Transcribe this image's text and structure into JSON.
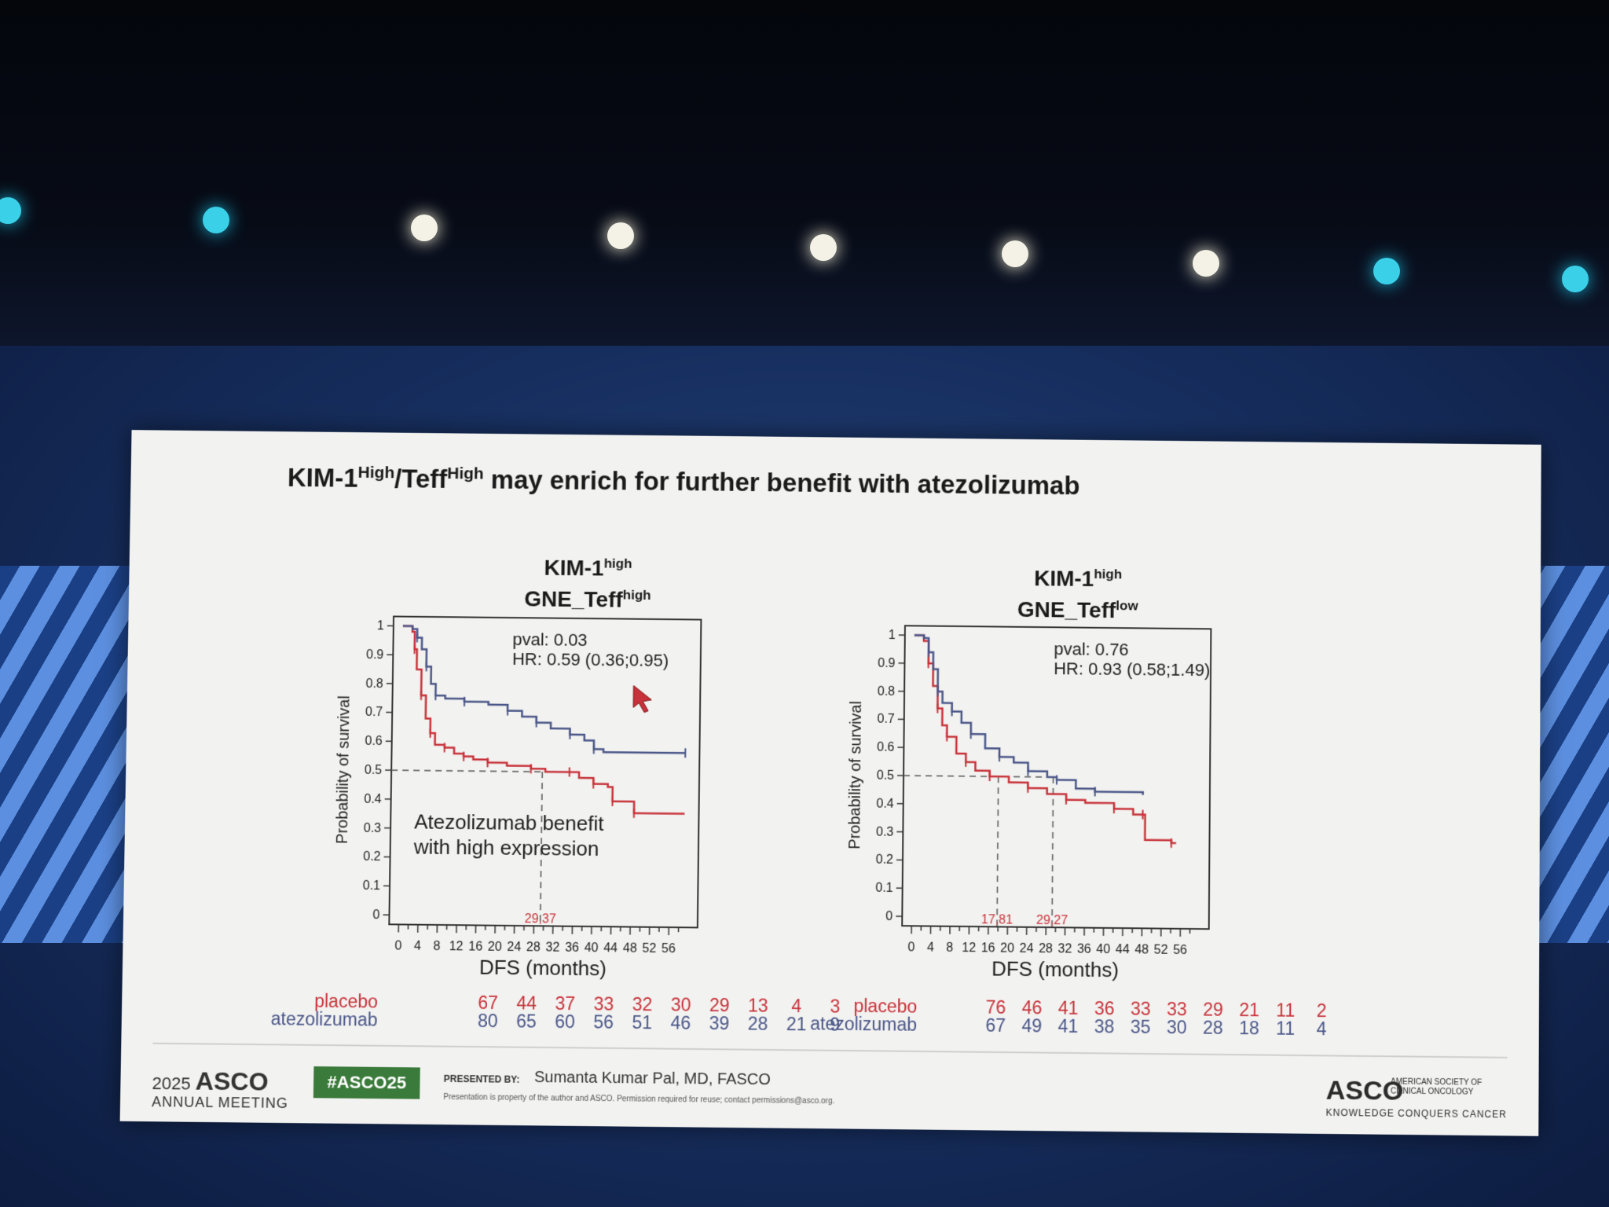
{
  "slide": {
    "title_main": "KIM-1",
    "title_sup1": "High",
    "title_mid": "/Teff",
    "title_sup2": "High",
    "title_end": " may enrich for further benefit with atezolizumab"
  },
  "colors": {
    "placebo": "#c8323a",
    "atezolizumab": "#4a5688",
    "hashtag_bg": "#3a7a3a"
  },
  "chart_data": [
    {
      "type": "line",
      "title_line1": "KIM-1",
      "title_line1_sup": "high",
      "title_line2": "GNE_Teff",
      "title_line2_sup": "high",
      "xlabel": "DFS (months)",
      "ylabel": "Probability of survival",
      "xlim": [
        0,
        60
      ],
      "ylim": [
        0,
        1
      ],
      "x_ticks": [
        "0",
        "4",
        "8",
        "12",
        "16",
        "20",
        "24",
        "28",
        "32",
        "36",
        "40",
        "44",
        "48",
        "52",
        "56"
      ],
      "y_ticks": [
        "0",
        "0.1",
        "0.2",
        "0.3",
        "0.4",
        "0.5",
        "0.6",
        "0.7",
        "0.8",
        "0.9",
        "1"
      ],
      "pval": "pval: 0.03",
      "hr": "HR: 0.59 (0.36;0.95)",
      "annotation_line1": "Atezolizumab benefit",
      "annotation_line2": "with high expression",
      "medians": [
        {
          "label": "29,37",
          "x": 29.37,
          "series": "placebo"
        }
      ],
      "series": [
        {
          "name": "placebo",
          "points": [
            [
              0,
              1
            ],
            [
              2,
              0.98
            ],
            [
              2.5,
              0.92
            ],
            [
              3,
              0.85
            ],
            [
              4,
              0.76
            ],
            [
              5,
              0.68
            ],
            [
              6,
              0.63
            ],
            [
              7,
              0.59
            ],
            [
              9,
              0.58
            ],
            [
              11,
              0.56
            ],
            [
              13,
              0.55
            ],
            [
              15,
              0.54
            ],
            [
              18,
              0.53
            ],
            [
              22,
              0.52
            ],
            [
              27,
              0.51
            ],
            [
              30,
              0.5
            ],
            [
              35,
              0.5
            ],
            [
              37,
              0.48
            ],
            [
              40,
              0.46
            ],
            [
              43,
              0.45
            ],
            [
              44,
              0.4
            ],
            [
              48,
              0.4
            ],
            [
              48.5,
              0.36
            ],
            [
              59,
              0.36
            ]
          ]
        },
        {
          "name": "atezolizumab",
          "points": [
            [
              0,
              1
            ],
            [
              2,
              0.99
            ],
            [
              3,
              0.96
            ],
            [
              4,
              0.92
            ],
            [
              5,
              0.86
            ],
            [
              6,
              0.8
            ],
            [
              7,
              0.76
            ],
            [
              9,
              0.75
            ],
            [
              13,
              0.74
            ],
            [
              18,
              0.73
            ],
            [
              22,
              0.71
            ],
            [
              25,
              0.69
            ],
            [
              28,
              0.67
            ],
            [
              31,
              0.65
            ],
            [
              35,
              0.63
            ],
            [
              38,
              0.61
            ],
            [
              40,
              0.58
            ],
            [
              42,
              0.57
            ],
            [
              59,
              0.57
            ]
          ]
        }
      ],
      "risk_table": {
        "placebo_label": "placebo",
        "atezolizumab_label": "atezolizumab",
        "placebo": [
          "67",
          "44",
          "37",
          "33",
          "32",
          "30",
          "29",
          "13",
          "4",
          "3"
        ],
        "atezolizumab": [
          "80",
          "65",
          "60",
          "56",
          "51",
          "46",
          "39",
          "28",
          "21",
          "9"
        ]
      }
    },
    {
      "type": "line",
      "title_line1": "KIM-1",
      "title_line1_sup": "high",
      "title_line2": "GNE_Teff",
      "title_line2_sup": "low",
      "xlabel": "DFS (months)",
      "ylabel": "Probability of survival",
      "xlim": [
        0,
        60
      ],
      "ylim": [
        0,
        1
      ],
      "x_ticks": [
        "0",
        "4",
        "8",
        "12",
        "16",
        "20",
        "24",
        "28",
        "32",
        "36",
        "40",
        "44",
        "48",
        "52",
        "56"
      ],
      "y_ticks": [
        "0",
        "0.1",
        "0.2",
        "0.3",
        "0.4",
        "0.5",
        "0.6",
        "0.7",
        "0.8",
        "0.9",
        "1"
      ],
      "pval": "pval: 0.76",
      "hr": "HR: 0.93 (0.58;1.49)",
      "medians": [
        {
          "label": "17,81",
          "x": 17.81,
          "series": "placebo"
        },
        {
          "label": "29,27",
          "x": 29.27,
          "series": "atezolizumab"
        }
      ],
      "series": [
        {
          "name": "placebo",
          "points": [
            [
              0,
              1
            ],
            [
              2,
              0.98
            ],
            [
              3,
              0.9
            ],
            [
              4,
              0.82
            ],
            [
              5,
              0.74
            ],
            [
              6,
              0.68
            ],
            [
              7,
              0.64
            ],
            [
              9,
              0.58
            ],
            [
              11,
              0.55
            ],
            [
              13,
              0.52
            ],
            [
              16,
              0.5
            ],
            [
              20,
              0.48
            ],
            [
              24,
              0.46
            ],
            [
              28,
              0.44
            ],
            [
              32,
              0.42
            ],
            [
              36,
              0.41
            ],
            [
              42,
              0.39
            ],
            [
              46,
              0.37
            ],
            [
              48,
              0.37
            ],
            [
              48.5,
              0.28
            ],
            [
              54,
              0.27
            ],
            [
              55,
              0.27
            ]
          ]
        },
        {
          "name": "atezolizumab",
          "points": [
            [
              0,
              1
            ],
            [
              2,
              0.99
            ],
            [
              3,
              0.94
            ],
            [
              4,
              0.88
            ],
            [
              5,
              0.8
            ],
            [
              6,
              0.76
            ],
            [
              8,
              0.73
            ],
            [
              10,
              0.69
            ],
            [
              12,
              0.65
            ],
            [
              15,
              0.6
            ],
            [
              18,
              0.57
            ],
            [
              21,
              0.55
            ],
            [
              24,
              0.52
            ],
            [
              28,
              0.5
            ],
            [
              30,
              0.49
            ],
            [
              34,
              0.46
            ],
            [
              38,
              0.45
            ],
            [
              48,
              0.44
            ]
          ]
        }
      ],
      "risk_table": {
        "placebo_label": "placebo",
        "atezolizumab_label": "atezolizumab",
        "placebo": [
          "76",
          "46",
          "41",
          "36",
          "33",
          "33",
          "29",
          "21",
          "11",
          "2"
        ],
        "atezolizumab": [
          "67",
          "49",
          "41",
          "38",
          "35",
          "30",
          "28",
          "18",
          "11",
          "4"
        ]
      }
    }
  ],
  "footer": {
    "year": "2025",
    "asco": "ASCO",
    "meeting": "ANNUAL MEETING",
    "hashtag": "#ASCO25",
    "presented_by_label": "PRESENTED BY:",
    "presenter": "Sumanta Kumar Pal, MD, FASCO",
    "disclaimer": "Presentation is property of the author and ASCO. Permission required for reuse; contact permissions@asco.org.",
    "asco_logo": "ASCO",
    "asco_society": "AMERICAN SOCIETY OF CLINICAL ONCOLOGY",
    "tagline": "KNOWLEDGE CONQUERS CANCER"
  }
}
